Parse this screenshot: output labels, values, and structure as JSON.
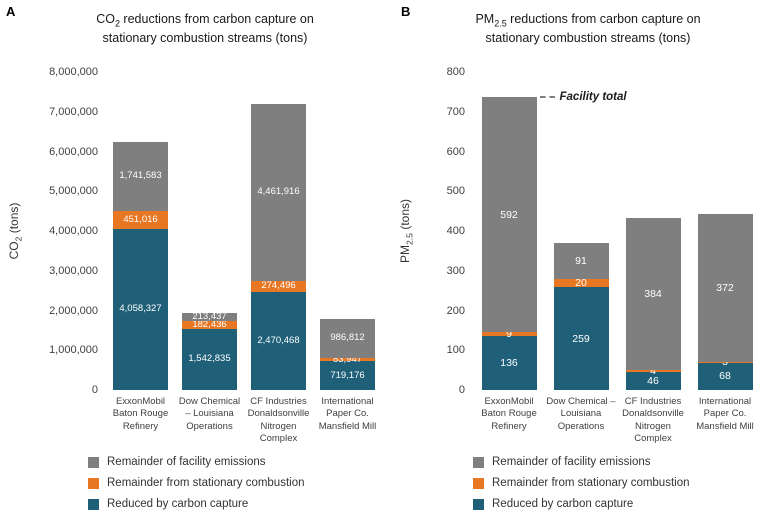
{
  "accent_colors": {
    "blue": "#1f5f78",
    "orange": "#e87724",
    "gray": "#7f7f7f"
  },
  "legend": {
    "items": [
      {
        "label": "Remainder of facility emissions",
        "color_key": "gray"
      },
      {
        "label": "Remainder from stationary combustion",
        "color_key": "orange"
      },
      {
        "label": "Reduced by carbon capture",
        "color_key": "blue"
      }
    ]
  },
  "chart_data": [
    {
      "type": "bar",
      "panel_letter": "A",
      "title_lines": [
        [
          {
            "t": "CO"
          },
          {
            "t": "2",
            "sub": true
          },
          {
            "t": " reductions from carbon capture on"
          }
        ],
        [
          {
            "t": "stationary combustion streams (tons)"
          }
        ]
      ],
      "ylabel_segments": [
        {
          "t": "CO"
        },
        {
          "t": "2",
          "sub": true
        },
        {
          "t": " (tons)"
        }
      ],
      "ylim": [
        0,
        8000000
      ],
      "ytick_step": 1000000,
      "ytick_format": "comma",
      "labels_format": "comma",
      "grid": false,
      "legend_position": "bottom-left",
      "categories": [
        "ExxonMobil\nBaton Rouge\nRefinery",
        "Dow Chemical\n– Louisiana\nOperations",
        "CF Industries\nDonaldsonville\nNitrogen\nComplex",
        "International\nPaper Co.\nMansfield Mill"
      ],
      "series": [
        {
          "name": "Reduced by carbon capture",
          "color_key": "blue",
          "values": [
            4058327,
            1542835,
            2470468,
            719176
          ]
        },
        {
          "name": "Remainder from stationary combustion",
          "color_key": "orange",
          "values": [
            451016,
            182436,
            274496,
            83947
          ]
        },
        {
          "name": "Remainder of facility emissions",
          "color_key": "gray",
          "values": [
            1741583,
            213437,
            4461916,
            986812
          ]
        }
      ]
    },
    {
      "type": "bar",
      "panel_letter": "B",
      "title_lines": [
        [
          {
            "t": "PM"
          },
          {
            "t": "2.5",
            "sub": true
          },
          {
            "t": " reductions from carbon capture on"
          }
        ],
        [
          {
            "t": "stationary combustion streams (tons)"
          }
        ]
      ],
      "ylabel_segments": [
        {
          "t": "PM"
        },
        {
          "t": "2.5",
          "sub": true
        },
        {
          "t": " (tons)"
        }
      ],
      "ylim": [
        0,
        800
      ],
      "ytick_step": 100,
      "ytick_format": "plain",
      "labels_format": "plain",
      "grid": false,
      "legend_position": "bottom-left",
      "annotation": "Facility total",
      "categories": [
        "ExxonMobil\nBaton Rouge\nRefinery",
        "Dow Chemical –\nLouisiana\nOperations",
        "CF Industries\nDonaldsonville\nNitrogen\nComplex",
        "International\nPaper Co.\nMansfield Mill"
      ],
      "series": [
        {
          "name": "Reduced by carbon capture",
          "color_key": "blue",
          "values": [
            136,
            259,
            46,
            68
          ]
        },
        {
          "name": "Remainder from stationary combustion",
          "color_key": "orange",
          "values": [
            9,
            20,
            4,
            3
          ]
        },
        {
          "name": "Remainder of facility emissions",
          "color_key": "gray",
          "values": [
            592,
            91,
            384,
            372
          ]
        }
      ]
    }
  ]
}
